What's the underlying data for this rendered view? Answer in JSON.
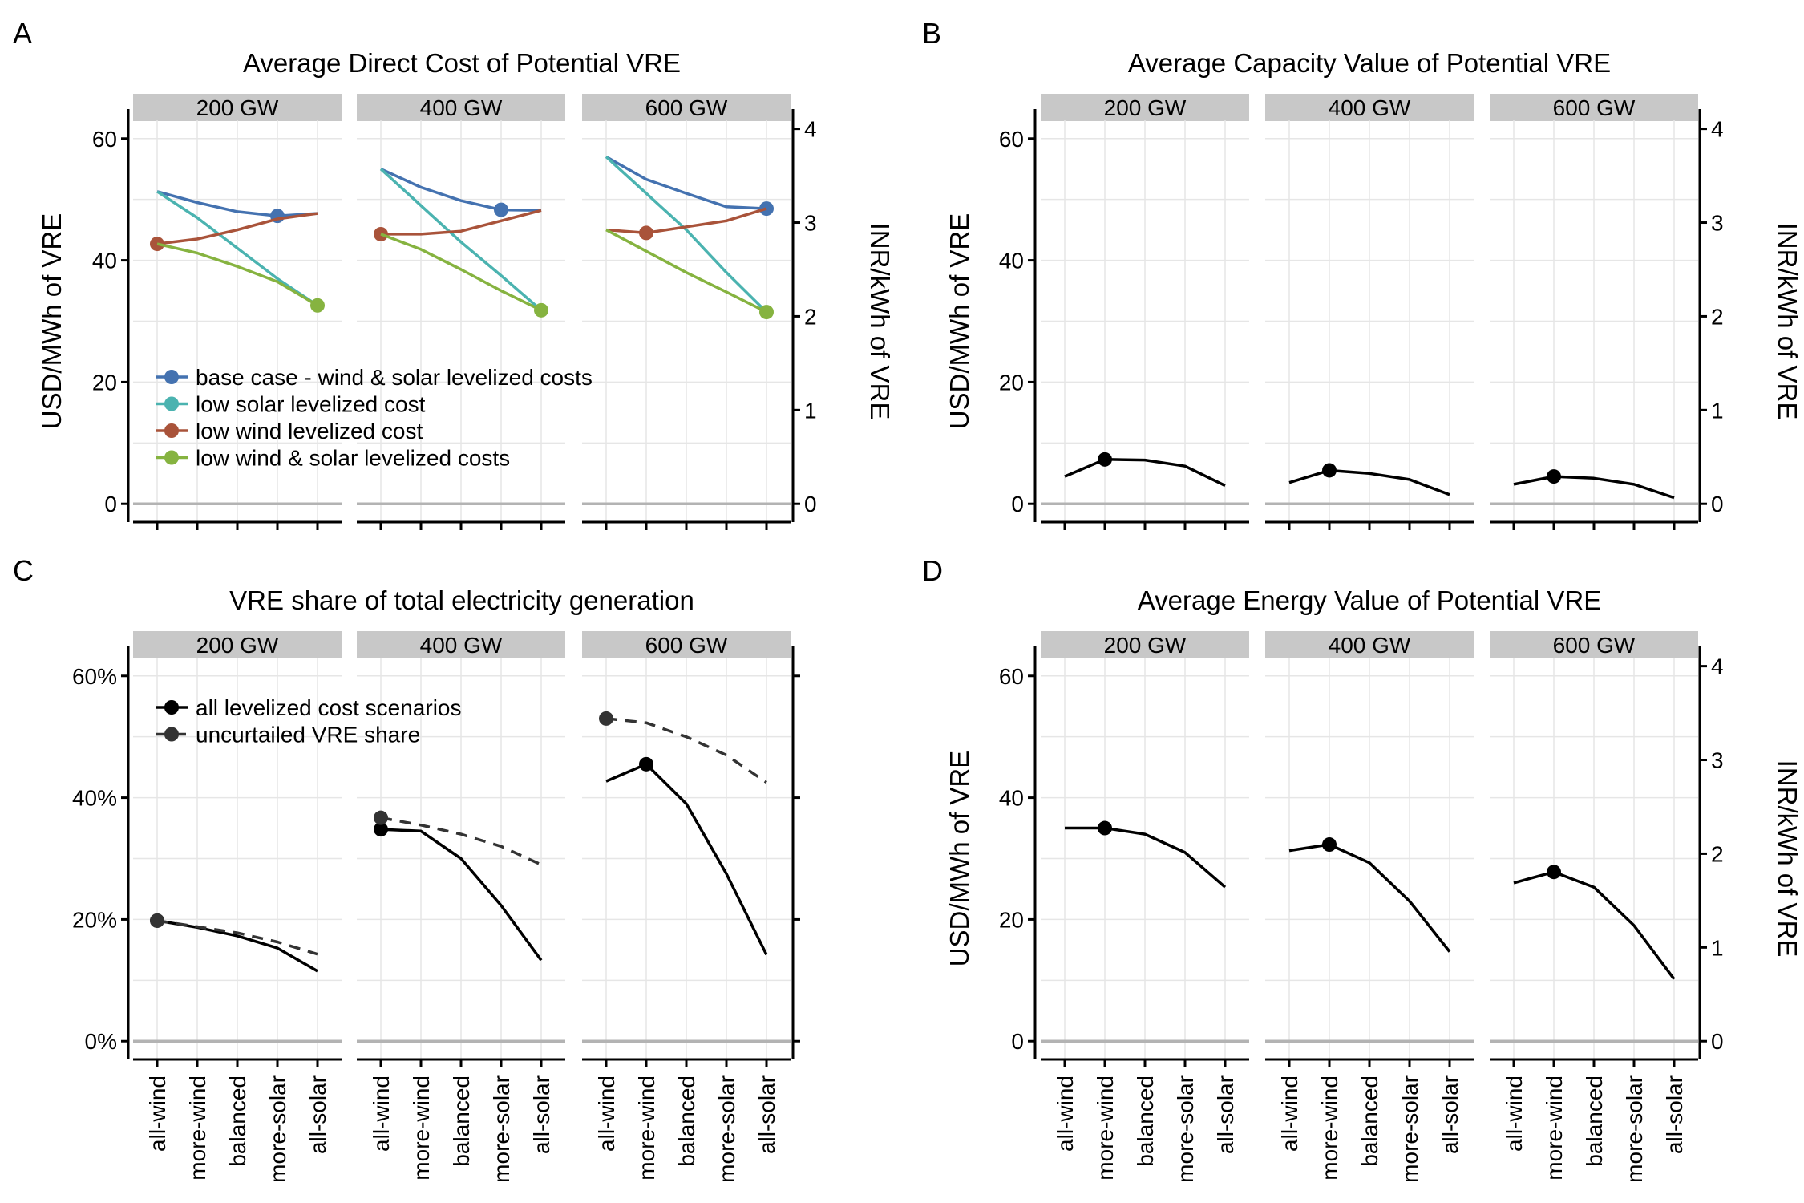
{
  "x_categories": [
    "all-wind",
    "more-wind",
    "balanced",
    "more-solar",
    "all-solar"
  ],
  "facets": [
    "200 GW",
    "400 GW",
    "600 GW"
  ],
  "colors": {
    "base": "#4472b0",
    "low_solar": "#4bb3b0",
    "low_wind": "#a9533a",
    "low_both": "#86b340",
    "black": "#000000",
    "uncurtailed": "#333333",
    "strip_bg": "#c8c8c8",
    "grid": "#e6e6e6",
    "zero_line": "#b3b3b3"
  },
  "chart_data": [
    {
      "id": "A",
      "letter": "A",
      "type": "line",
      "title": "Average Direct Cost of Potential VRE",
      "ylabel": "USD/MWh of VRE",
      "ylabel2": "INR/kWh of VRE",
      "ylim": [
        -3,
        63
      ],
      "yticks": [
        0,
        20,
        40,
        60
      ],
      "yticklabels": [
        "0",
        "20",
        "40",
        "60"
      ],
      "y2ticks": [
        0,
        1,
        2,
        3,
        4
      ],
      "y2_per_unit": 15.4,
      "legend_position": "bottom-left",
      "series": [
        {
          "name": "base case - wind & solar levelized costs",
          "color_key": "base",
          "dash": false,
          "facets": [
            [
              51.3,
              49.5,
              48.0,
              47.3,
              47.7
            ],
            [
              55.0,
              52.0,
              49.8,
              48.3,
              48.2
            ],
            [
              57.0,
              53.3,
              51.0,
              48.8,
              48.5
            ]
          ],
          "markers": [
            3,
            3,
            4
          ]
        },
        {
          "name": "low solar levelized cost",
          "color_key": "low_solar",
          "dash": false,
          "facets": [
            [
              51.3,
              47.0,
              42.0,
              37.0,
              32.6
            ],
            [
              55.0,
              49.0,
              43.0,
              37.5,
              31.8
            ],
            [
              57.0,
              51.0,
              45.0,
              38.0,
              31.5
            ]
          ],
          "markers": []
        },
        {
          "name": "low wind levelized cost",
          "color_key": "low_wind",
          "dash": false,
          "facets": [
            [
              42.7,
              43.5,
              45.0,
              46.8,
              47.7
            ],
            [
              44.3,
              44.3,
              44.8,
              46.5,
              48.2
            ],
            [
              45.0,
              44.5,
              45.5,
              46.5,
              48.5
            ]
          ],
          "markers": [
            0,
            0,
            1
          ]
        },
        {
          "name": "low wind & solar levelized costs",
          "color_key": "low_both",
          "dash": false,
          "facets": [
            [
              42.7,
              41.2,
              39.0,
              36.5,
              32.6
            ],
            [
              44.3,
              41.8,
              38.5,
              35.0,
              31.8
            ],
            [
              45.0,
              41.5,
              38.0,
              34.8,
              31.5
            ]
          ],
          "markers": [
            4,
            4,
            4
          ]
        }
      ]
    },
    {
      "id": "B",
      "letter": "B",
      "type": "line",
      "title": "Average Capacity Value of Potential VRE",
      "ylabel": "USD/MWh of VRE",
      "ylabel2": "INR/kWh of VRE",
      "ylim": [
        -3,
        63
      ],
      "yticks": [
        0,
        20,
        40,
        60
      ],
      "yticklabels": [
        "0",
        "20",
        "40",
        "60"
      ],
      "y2ticks": [
        0,
        1,
        2,
        3,
        4
      ],
      "y2_per_unit": 15.4,
      "series": [
        {
          "name": "",
          "color_key": "black",
          "dash": false,
          "facets": [
            [
              4.5,
              7.3,
              7.2,
              6.2,
              3.0
            ],
            [
              3.5,
              5.5,
              5.0,
              4.0,
              1.5
            ],
            [
              3.2,
              4.5,
              4.2,
              3.2,
              1.0
            ]
          ],
          "markers": [
            1,
            1,
            1
          ]
        }
      ]
    },
    {
      "id": "C",
      "letter": "C",
      "type": "line",
      "title": "VRE share of total electricity generation",
      "ylabel": "",
      "ylabel2": "",
      "ylim": [
        -3,
        63
      ],
      "yticks": [
        0,
        20,
        40,
        60
      ],
      "yticklabels": [
        "0%",
        "20%",
        "40%",
        "60%"
      ],
      "y2ticks": [
        0,
        20,
        40,
        60
      ],
      "y2_per_unit": 1,
      "legend_position": "top-left",
      "series": [
        {
          "name": "all levelized cost scenarios",
          "color_key": "black",
          "dash": false,
          "facets": [
            [
              19.8,
              18.7,
              17.3,
              15.3,
              11.5
            ],
            [
              34.8,
              34.5,
              30.0,
              22.3,
              13.3
            ],
            [
              42.7,
              45.5,
              39.0,
              27.5,
              14.2
            ]
          ],
          "markers": [
            0,
            0,
            1
          ]
        },
        {
          "name": "uncurtailed VRE share",
          "color_key": "uncurtailed",
          "dash": true,
          "facets": [
            [
              19.8,
              18.8,
              17.8,
              16.3,
              14.3
            ],
            [
              36.7,
              35.5,
              34.0,
              32.0,
              29.0
            ],
            [
              53.0,
              52.3,
              50.0,
              47.0,
              42.5
            ]
          ],
          "markers": [
            0,
            0,
            0
          ]
        }
      ]
    },
    {
      "id": "D",
      "letter": "D",
      "type": "line",
      "title": "Average Energy Value of Potential VRE",
      "ylabel": "USD/MWh of VRE",
      "ylabel2": "INR/kWh of VRE",
      "ylim": [
        -3,
        63
      ],
      "yticks": [
        0,
        20,
        40,
        60
      ],
      "yticklabels": [
        "0",
        "20",
        "40",
        "60"
      ],
      "y2ticks": [
        0,
        1,
        2,
        3,
        4
      ],
      "y2_per_unit": 15.4,
      "series": [
        {
          "name": "",
          "color_key": "black",
          "dash": false,
          "facets": [
            [
              35.0,
              35.0,
              34.0,
              31.0,
              25.3
            ],
            [
              31.3,
              32.3,
              29.3,
              23.0,
              14.7
            ],
            [
              26.0,
              27.8,
              25.3,
              19.0,
              10.2
            ]
          ],
          "markers": [
            1,
            1,
            1
          ]
        }
      ]
    }
  ]
}
